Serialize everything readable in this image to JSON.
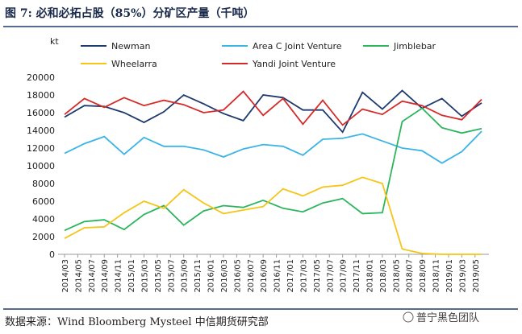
{
  "chart_data": {
    "type": "line",
    "title": "图 7:  必和必拓占股（85%）分矿区产量（千吨）",
    "y_label": "kt",
    "source": "数据来源：Wind Bloomberg Mysteel 中信期货研究部",
    "watermark": "普宁黑色团队",
    "x": [
      "2014/03",
      "2014/06",
      "2014/09",
      "2014/12",
      "2015/03",
      "2015/06",
      "2015/09",
      "2015/12",
      "2016/03",
      "2016/06",
      "2016/09",
      "2016/12",
      "2017/03",
      "2017/06",
      "2017/09",
      "2017/12",
      "2018/03",
      "2018/06",
      "2018/09",
      "2018/12",
      "2019/03",
      "2019/06"
    ],
    "xlim": [
      "2014/03",
      "2019/06"
    ],
    "xticks": [
      "2014/03",
      "2014/05",
      "2014/07",
      "2014/09",
      "2014/11",
      "2015/01",
      "2015/03",
      "2015/05",
      "2015/07",
      "2015/09",
      "2015/11",
      "2016/01",
      "2016/03",
      "2016/05",
      "2016/07",
      "2016/09",
      "2016/11",
      "2017/01",
      "2017/03",
      "2017/05",
      "2017/07",
      "2017/09",
      "2017/11",
      "2018/01",
      "2018/03",
      "2018/05",
      "2018/07",
      "2018/09",
      "2018/11",
      "2019/01",
      "2019/03",
      "2019/05"
    ],
    "ylim": [
      0,
      20000
    ],
    "yticks": [
      0,
      2000,
      4000,
      6000,
      8000,
      10000,
      12000,
      14000,
      16000,
      18000,
      20000
    ],
    "legend": "top",
    "series": [
      {
        "name": "Newman",
        "color": "#1f3a6e",
        "values": [
          15500,
          16800,
          16700,
          16000,
          14900,
          16100,
          18000,
          17000,
          15900,
          15100,
          18000,
          17700,
          16300,
          16300,
          13800,
          18300,
          16400,
          18500,
          16500,
          17600,
          15600,
          17100
        ]
      },
      {
        "name": "Area C Joint Venture",
        "color": "#3cb4e6",
        "values": [
          11400,
          12500,
          13300,
          11300,
          13200,
          12200,
          12200,
          11800,
          11000,
          11900,
          12400,
          12200,
          11200,
          13000,
          13100,
          13600,
          12800,
          12000,
          11700,
          10300,
          11600,
          13900
        ]
      },
      {
        "name": "Jimblebar",
        "color": "#2db55d",
        "values": [
          2700,
          3700,
          3900,
          2800,
          4500,
          5500,
          3300,
          4900,
          5500,
          5300,
          6100,
          5200,
          4800,
          5800,
          6300,
          4600,
          4700,
          15000,
          16500,
          14300,
          13700,
          14200
        ]
      },
      {
        "name": "Wheelarra",
        "color": "#f5c518",
        "values": [
          1800,
          3000,
          3100,
          4700,
          6000,
          5200,
          7300,
          5800,
          4600,
          5000,
          5400,
          7400,
          6600,
          7600,
          7800,
          8700,
          8000,
          600,
          100,
          0,
          0,
          0
        ]
      },
      {
        "name": "Yandi Joint Venture",
        "color": "#d62a2a",
        "values": [
          15800,
          17600,
          16600,
          17700,
          16800,
          17400,
          16900,
          16000,
          16300,
          18400,
          15700,
          17600,
          14700,
          17400,
          14600,
          16400,
          15800,
          17300,
          16800,
          15700,
          15200,
          17500
        ]
      }
    ]
  }
}
